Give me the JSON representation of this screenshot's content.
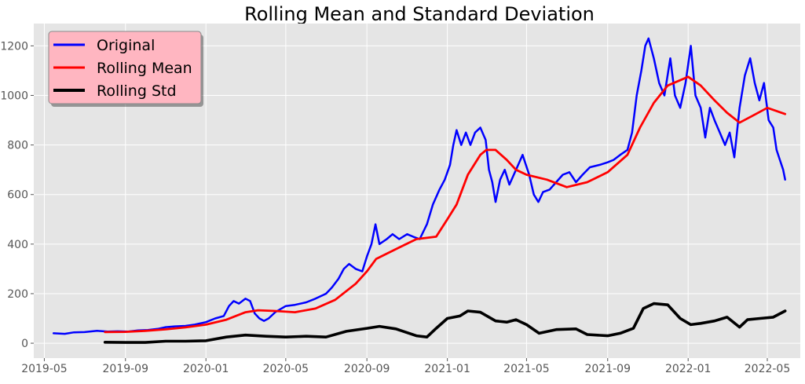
{
  "chart_data": {
    "type": "line",
    "title": "Rolling Mean and Standard Deviation",
    "xlabel": "",
    "ylabel": "",
    "x_ticks": [
      "2019-05",
      "2019-09",
      "2020-01",
      "2020-05",
      "2020-09",
      "2021-01",
      "2021-05",
      "2021-09",
      "2022-01",
      "2022-05"
    ],
    "y_ticks": [
      "0",
      "200",
      "400",
      "600",
      "800",
      "1000",
      "1200"
    ],
    "ylim": [
      -60,
      1290
    ],
    "xlim": [
      "2019-04-15",
      "2022-06-20"
    ],
    "grid": true,
    "background": "#e5e5e5",
    "legend_placement": "top-left",
    "legend_background": "#ffb6c1",
    "series": [
      {
        "name": "Original",
        "color": "#0000ff",
        "points": [
          [
            "2019-05-15",
            40
          ],
          [
            "2019-06-01",
            38
          ],
          [
            "2019-06-15",
            44
          ],
          [
            "2019-07-01",
            45
          ],
          [
            "2019-07-20",
            50
          ],
          [
            "2019-08-05",
            47
          ],
          [
            "2019-08-20",
            48
          ],
          [
            "2019-09-05",
            47
          ],
          [
            "2019-09-20",
            52
          ],
          [
            "2019-10-05",
            53
          ],
          [
            "2019-10-20",
            58
          ],
          [
            "2019-11-01",
            65
          ],
          [
            "2019-11-15",
            68
          ],
          [
            "2019-12-01",
            70
          ],
          [
            "2019-12-15",
            75
          ],
          [
            "2020-01-01",
            85
          ],
          [
            "2020-01-15",
            100
          ],
          [
            "2020-01-28",
            110
          ],
          [
            "2020-02-05",
            150
          ],
          [
            "2020-02-12",
            170
          ],
          [
            "2020-02-20",
            160
          ],
          [
            "2020-03-01",
            180
          ],
          [
            "2020-03-08",
            170
          ],
          [
            "2020-03-15",
            120
          ],
          [
            "2020-03-22",
            100
          ],
          [
            "2020-03-29",
            90
          ],
          [
            "2020-04-05",
            100
          ],
          [
            "2020-04-15",
            125
          ],
          [
            "2020-05-01",
            150
          ],
          [
            "2020-05-15",
            155
          ],
          [
            "2020-06-01",
            165
          ],
          [
            "2020-06-15",
            180
          ],
          [
            "2020-07-01",
            200
          ],
          [
            "2020-07-10",
            225
          ],
          [
            "2020-07-20",
            260
          ],
          [
            "2020-07-28",
            300
          ],
          [
            "2020-08-05",
            320
          ],
          [
            "2020-08-15",
            300
          ],
          [
            "2020-08-25",
            290
          ],
          [
            "2020-09-01",
            350
          ],
          [
            "2020-09-08",
            400
          ],
          [
            "2020-09-14",
            480
          ],
          [
            "2020-09-20",
            400
          ],
          [
            "2020-10-01",
            420
          ],
          [
            "2020-10-10",
            440
          ],
          [
            "2020-10-20",
            420
          ],
          [
            "2020-11-01",
            440
          ],
          [
            "2020-11-10",
            430
          ],
          [
            "2020-11-20",
            420
          ],
          [
            "2020-12-01",
            480
          ],
          [
            "2020-12-10",
            560
          ],
          [
            "2020-12-20",
            620
          ],
          [
            "2020-12-28",
            660
          ],
          [
            "2021-01-05",
            720
          ],
          [
            "2021-01-10",
            800
          ],
          [
            "2021-01-15",
            860
          ],
          [
            "2021-01-22",
            800
          ],
          [
            "2021-01-29",
            850
          ],
          [
            "2021-02-05",
            800
          ],
          [
            "2021-02-12",
            850
          ],
          [
            "2021-02-20",
            870
          ],
          [
            "2021-02-28",
            820
          ],
          [
            "2021-03-05",
            700
          ],
          [
            "2021-03-10",
            650
          ],
          [
            "2021-03-15",
            570
          ],
          [
            "2021-03-22",
            660
          ],
          [
            "2021-03-29",
            700
          ],
          [
            "2021-04-05",
            640
          ],
          [
            "2021-04-15",
            700
          ],
          [
            "2021-04-25",
            760
          ],
          [
            "2021-05-05",
            680
          ],
          [
            "2021-05-12",
            600
          ],
          [
            "2021-05-19",
            570
          ],
          [
            "2021-05-26",
            610
          ],
          [
            "2021-06-05",
            620
          ],
          [
            "2021-06-15",
            650
          ],
          [
            "2021-06-25",
            680
          ],
          [
            "2021-07-05",
            690
          ],
          [
            "2021-07-15",
            650
          ],
          [
            "2021-07-25",
            680
          ],
          [
            "2021-08-05",
            710
          ],
          [
            "2021-08-20",
            720
          ],
          [
            "2021-09-01",
            730
          ],
          [
            "2021-09-10",
            740
          ],
          [
            "2021-09-20",
            760
          ],
          [
            "2021-10-01",
            780
          ],
          [
            "2021-10-08",
            850
          ],
          [
            "2021-10-15",
            1000
          ],
          [
            "2021-10-22",
            1100
          ],
          [
            "2021-10-28",
            1200
          ],
          [
            "2021-11-02",
            1230
          ],
          [
            "2021-11-10",
            1150
          ],
          [
            "2021-11-18",
            1050
          ],
          [
            "2021-11-26",
            1000
          ],
          [
            "2021-12-05",
            1150
          ],
          [
            "2021-12-12",
            1000
          ],
          [
            "2021-12-20",
            950
          ],
          [
            "2021-12-28",
            1050
          ],
          [
            "2022-01-05",
            1200
          ],
          [
            "2022-01-12",
            1000
          ],
          [
            "2022-01-20",
            950
          ],
          [
            "2022-01-27",
            830
          ],
          [
            "2022-02-03",
            950
          ],
          [
            "2022-02-10",
            900
          ],
          [
            "2022-02-18",
            850
          ],
          [
            "2022-02-26",
            800
          ],
          [
            "2022-03-05",
            850
          ],
          [
            "2022-03-12",
            750
          ],
          [
            "2022-03-20",
            950
          ],
          [
            "2022-03-28",
            1080
          ],
          [
            "2022-04-05",
            1150
          ],
          [
            "2022-04-12",
            1050
          ],
          [
            "2022-04-19",
            980
          ],
          [
            "2022-04-26",
            1050
          ],
          [
            "2022-05-03",
            900
          ],
          [
            "2022-05-10",
            870
          ],
          [
            "2022-05-15",
            780
          ],
          [
            "2022-05-20",
            740
          ],
          [
            "2022-05-25",
            700
          ],
          [
            "2022-05-28",
            660
          ]
        ]
      },
      {
        "name": "Rolling Mean",
        "color": "#ff0000",
        "points": [
          [
            "2019-08-01",
            45
          ],
          [
            "2019-09-01",
            46
          ],
          [
            "2019-10-01",
            50
          ],
          [
            "2019-11-01",
            56
          ],
          [
            "2019-12-01",
            64
          ],
          [
            "2020-01-01",
            75
          ],
          [
            "2020-02-01",
            95
          ],
          [
            "2020-03-01",
            125
          ],
          [
            "2020-03-20",
            133
          ],
          [
            "2020-04-15",
            130
          ],
          [
            "2020-05-15",
            125
          ],
          [
            "2020-06-15",
            140
          ],
          [
            "2020-07-15",
            175
          ],
          [
            "2020-08-15",
            240
          ],
          [
            "2020-09-01",
            290
          ],
          [
            "2020-09-15",
            340
          ],
          [
            "2020-10-15",
            380
          ],
          [
            "2020-11-15",
            420
          ],
          [
            "2020-12-15",
            430
          ],
          [
            "2021-01-01",
            500
          ],
          [
            "2021-01-15",
            560
          ],
          [
            "2021-02-01",
            680
          ],
          [
            "2021-02-20",
            760
          ],
          [
            "2021-03-01",
            780
          ],
          [
            "2021-03-15",
            780
          ],
          [
            "2021-04-01",
            740
          ],
          [
            "2021-04-15",
            700
          ],
          [
            "2021-05-01",
            680
          ],
          [
            "2021-06-01",
            660
          ],
          [
            "2021-07-01",
            630
          ],
          [
            "2021-08-01",
            650
          ],
          [
            "2021-09-01",
            690
          ],
          [
            "2021-10-01",
            760
          ],
          [
            "2021-10-20",
            870
          ],
          [
            "2021-11-10",
            970
          ],
          [
            "2021-12-01",
            1040
          ],
          [
            "2022-01-01",
            1075
          ],
          [
            "2022-01-20",
            1040
          ],
          [
            "2022-02-10",
            980
          ],
          [
            "2022-03-01",
            930
          ],
          [
            "2022-03-20",
            890
          ],
          [
            "2022-04-10",
            920
          ],
          [
            "2022-05-01",
            950
          ],
          [
            "2022-05-28",
            925
          ]
        ]
      },
      {
        "name": "Rolling Std",
        "color": "#000000",
        "points": [
          [
            "2019-08-01",
            4
          ],
          [
            "2019-09-01",
            3
          ],
          [
            "2019-10-01",
            3
          ],
          [
            "2019-11-01",
            8
          ],
          [
            "2019-12-01",
            8
          ],
          [
            "2020-01-01",
            10
          ],
          [
            "2020-02-01",
            25
          ],
          [
            "2020-03-01",
            33
          ],
          [
            "2020-04-01",
            28
          ],
          [
            "2020-05-01",
            25
          ],
          [
            "2020-06-01",
            28
          ],
          [
            "2020-07-01",
            25
          ],
          [
            "2020-08-01",
            48
          ],
          [
            "2020-09-01",
            60
          ],
          [
            "2020-09-20",
            68
          ],
          [
            "2020-10-15",
            58
          ],
          [
            "2020-11-15",
            30
          ],
          [
            "2020-12-01",
            25
          ],
          [
            "2020-12-15",
            60
          ],
          [
            "2021-01-01",
            100
          ],
          [
            "2021-01-20",
            110
          ],
          [
            "2021-02-01",
            130
          ],
          [
            "2021-02-20",
            125
          ],
          [
            "2021-03-15",
            90
          ],
          [
            "2021-04-01",
            85
          ],
          [
            "2021-04-15",
            95
          ],
          [
            "2021-05-01",
            75
          ],
          [
            "2021-05-20",
            40
          ],
          [
            "2021-06-15",
            55
          ],
          [
            "2021-07-15",
            58
          ],
          [
            "2021-08-01",
            35
          ],
          [
            "2021-09-01",
            30
          ],
          [
            "2021-09-20",
            40
          ],
          [
            "2021-10-10",
            60
          ],
          [
            "2021-10-25",
            140
          ],
          [
            "2021-11-10",
            160
          ],
          [
            "2021-12-01",
            155
          ],
          [
            "2021-12-20",
            100
          ],
          [
            "2022-01-05",
            75
          ],
          [
            "2022-01-20",
            80
          ],
          [
            "2022-02-10",
            90
          ],
          [
            "2022-03-01",
            105
          ],
          [
            "2022-03-20",
            65
          ],
          [
            "2022-04-01",
            95
          ],
          [
            "2022-04-20",
            100
          ],
          [
            "2022-05-10",
            105
          ],
          [
            "2022-05-28",
            130
          ]
        ]
      }
    ]
  }
}
